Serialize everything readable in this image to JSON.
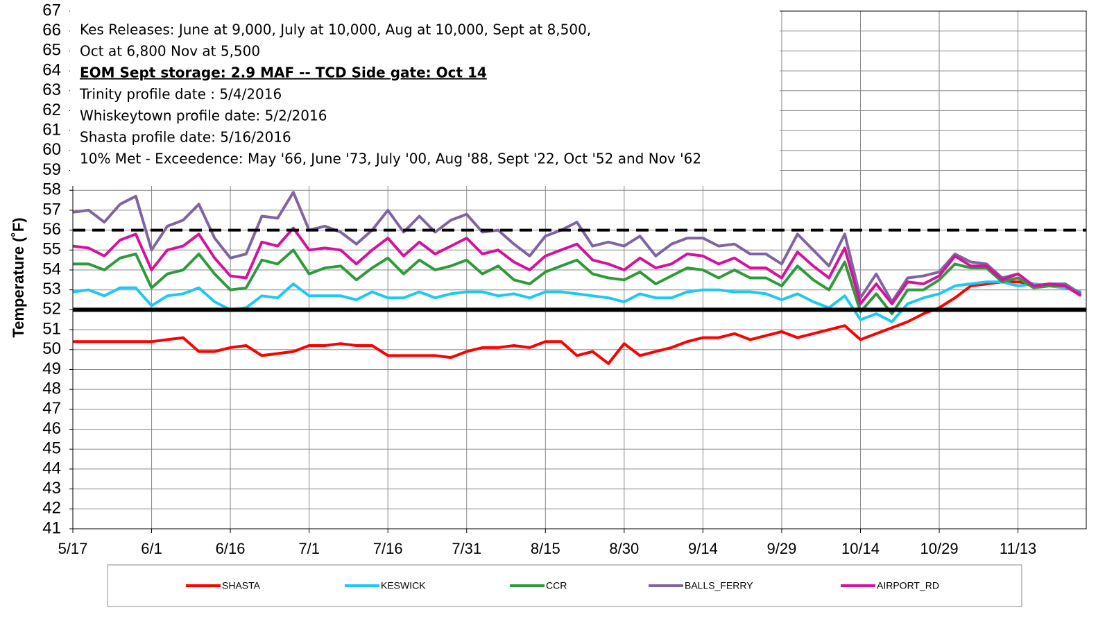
{
  "chart_data": {
    "type": "line",
    "ylabel": "Temperature (˚F)",
    "annotations": [
      "Kes Releases: June at 9,000, July at 10,000, Aug  at 10,000, Sept at 8,500,",
      "Oct at 6,800 Nov at 5,500",
      "EOM Sept storage: 2.9 MAF -- TCD Side gate: Oct 14",
      "Trinity profile date : 5/4/2016",
      "Whiskeytown profile date: 5/2/2016",
      "Shasta profile date: 5/16/2016",
      "10% Met - Exceedence: May '66, June  '73, July '00, Aug  '88, Sept '22, Oct '52 and Nov '62"
    ],
    "x": [
      "5/17",
      "5/20",
      "5/23",
      "5/26",
      "5/29",
      "6/1",
      "6/4",
      "6/7",
      "6/10",
      "6/13",
      "6/16",
      "6/19",
      "6/22",
      "6/25",
      "6/28",
      "7/1",
      "7/4",
      "7/7",
      "7/10",
      "7/13",
      "7/16",
      "7/19",
      "7/22",
      "7/25",
      "7/28",
      "7/31",
      "8/3",
      "8/6",
      "8/9",
      "8/12",
      "8/15",
      "8/18",
      "8/21",
      "8/24",
      "8/27",
      "8/30",
      "9/2",
      "9/5",
      "9/8",
      "9/11",
      "9/14",
      "9/17",
      "9/20",
      "9/23",
      "9/26",
      "9/29",
      "10/2",
      "10/5",
      "10/8",
      "10/11",
      "10/14",
      "10/17",
      "10/20",
      "10/23",
      "10/26",
      "10/29",
      "11/1",
      "11/4",
      "11/7",
      "11/10",
      "11/13",
      "11/16",
      "11/19",
      "11/22",
      "11/25"
    ],
    "xlim": [
      "5/17",
      "11/26"
    ],
    "xticks": [
      "5/17",
      "6/1",
      "6/16",
      "7/1",
      "7/16",
      "7/31",
      "8/15",
      "8/30",
      "9/14",
      "9/29",
      "10/14",
      "10/29",
      "11/13"
    ],
    "ylim": [
      41,
      67
    ],
    "yticks": [
      41,
      42,
      43,
      44,
      45,
      46,
      47,
      48,
      49,
      50,
      51,
      52,
      53,
      54,
      55,
      56,
      57,
      58,
      59,
      60,
      61,
      62,
      63,
      64,
      65,
      66,
      67
    ],
    "grid": true,
    "reference_lines": [
      {
        "value": 56,
        "style": "dashed",
        "color": "#000000"
      },
      {
        "value": 52,
        "style": "solid",
        "color": "#000000"
      }
    ],
    "series": [
      {
        "name": "SHASTA",
        "color": "#ff0000",
        "values": [
          50.4,
          50.4,
          50.4,
          50.4,
          50.4,
          50.4,
          50.5,
          50.6,
          49.9,
          49.9,
          50.1,
          50.2,
          49.7,
          49.8,
          49.9,
          50.2,
          50.2,
          50.3,
          50.2,
          50.2,
          49.7,
          49.7,
          49.7,
          49.7,
          49.6,
          49.9,
          50.1,
          50.1,
          50.2,
          50.1,
          50.4,
          50.4,
          49.7,
          49.9,
          49.3,
          50.3,
          49.7,
          49.9,
          50.1,
          50.4,
          50.6,
          50.6,
          50.8,
          50.5,
          50.7,
          50.9,
          50.6,
          50.8,
          51.0,
          51.2,
          50.5,
          50.8,
          51.1,
          51.4,
          51.8,
          52.1,
          52.6,
          53.2,
          53.3,
          53.4,
          53.4,
          53.3,
          53.2,
          53.1,
          52.9
        ]
      },
      {
        "name": "KESWICK",
        "color": "#1ec8f5",
        "values": [
          52.9,
          53.0,
          52.7,
          53.1,
          53.1,
          52.2,
          52.7,
          52.8,
          53.1,
          52.4,
          52.0,
          52.1,
          52.7,
          52.6,
          53.3,
          52.7,
          52.7,
          52.7,
          52.5,
          52.9,
          52.6,
          52.6,
          52.9,
          52.6,
          52.8,
          52.9,
          52.9,
          52.7,
          52.8,
          52.6,
          52.9,
          52.9,
          52.8,
          52.7,
          52.6,
          52.4,
          52.8,
          52.6,
          52.6,
          52.9,
          53.0,
          53.0,
          52.9,
          52.9,
          52.8,
          52.5,
          52.8,
          52.4,
          52.1,
          52.7,
          51.5,
          51.8,
          51.4,
          52.3,
          52.6,
          52.8,
          53.2,
          53.3,
          53.4,
          53.4,
          53.2,
          53.3,
          53.2,
          53.1,
          52.9
        ]
      },
      {
        "name": "CCR",
        "color": "#2e9b3a",
        "values": [
          54.3,
          54.3,
          54.0,
          54.6,
          54.8,
          53.1,
          53.8,
          54.0,
          54.8,
          53.8,
          53.0,
          53.1,
          54.5,
          54.3,
          55.0,
          53.8,
          54.1,
          54.2,
          53.5,
          54.1,
          54.6,
          53.8,
          54.5,
          54.0,
          54.2,
          54.5,
          53.8,
          54.2,
          53.5,
          53.3,
          53.9,
          54.2,
          54.5,
          53.8,
          53.6,
          53.5,
          53.9,
          53.3,
          53.7,
          54.1,
          54.0,
          53.6,
          54.0,
          53.6,
          53.6,
          53.2,
          54.2,
          53.5,
          53.0,
          54.4,
          51.9,
          52.8,
          51.8,
          53.0,
          53.0,
          53.5,
          54.3,
          54.1,
          54.1,
          53.4,
          53.6,
          53.1,
          53.2,
          53.2,
          52.8
        ]
      },
      {
        "name": "BALLS_FERRY",
        "color": "#8064a2",
        "values": [
          56.9,
          57.0,
          56.4,
          57.3,
          57.7,
          55.0,
          56.2,
          56.5,
          57.3,
          55.6,
          54.6,
          54.8,
          56.7,
          56.6,
          57.9,
          56.0,
          56.2,
          55.9,
          55.3,
          56.0,
          57.0,
          55.9,
          56.7,
          55.9,
          56.5,
          56.8,
          55.9,
          56.0,
          55.3,
          54.7,
          55.7,
          56.0,
          56.4,
          55.2,
          55.4,
          55.2,
          55.7,
          54.7,
          55.3,
          55.6,
          55.6,
          55.2,
          55.3,
          54.8,
          54.8,
          54.3,
          55.8,
          55.0,
          54.2,
          55.8,
          52.6,
          53.8,
          52.4,
          53.6,
          53.7,
          53.9,
          54.8,
          54.4,
          54.3,
          53.6,
          53.8,
          53.2,
          53.3,
          53.3,
          52.8
        ]
      },
      {
        "name": "AIRPORT_RD",
        "color": "#d6129d",
        "values": [
          55.2,
          55.1,
          54.7,
          55.5,
          55.8,
          54.0,
          55.0,
          55.2,
          55.8,
          54.6,
          53.7,
          53.6,
          55.4,
          55.2,
          56.1,
          55.0,
          55.1,
          55.0,
          54.3,
          55.0,
          55.6,
          54.7,
          55.4,
          54.8,
          55.2,
          55.6,
          54.8,
          55.0,
          54.4,
          54.0,
          54.7,
          55.0,
          55.3,
          54.5,
          54.3,
          54.0,
          54.6,
          54.1,
          54.3,
          54.8,
          54.7,
          54.3,
          54.6,
          54.1,
          54.1,
          53.6,
          54.9,
          54.2,
          53.6,
          55.1,
          52.3,
          53.3,
          52.3,
          53.4,
          53.3,
          53.7,
          54.7,
          54.2,
          54.2,
          53.5,
          53.8,
          53.2,
          53.3,
          53.2,
          52.7
        ]
      }
    ]
  }
}
